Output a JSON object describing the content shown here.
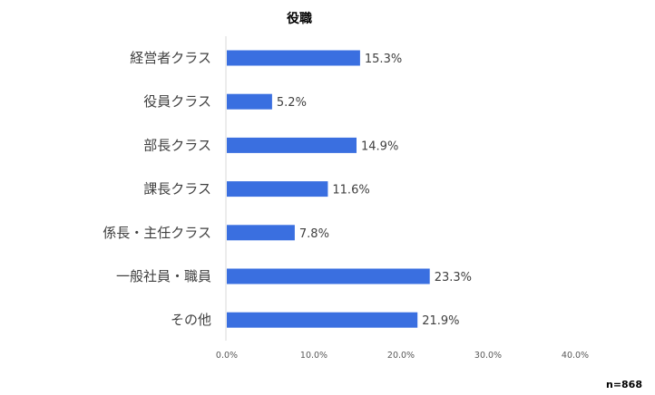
{
  "chart_data": {
    "type": "bar",
    "orientation": "horizontal",
    "title": "役職",
    "categories": [
      "経営者クラス",
      "役員クラス",
      "部長クラス",
      "課長クラス",
      "係長・主任クラス",
      "一般社員・職員",
      "その他"
    ],
    "values": [
      15.3,
      5.2,
      14.9,
      11.6,
      7.8,
      23.3,
      21.9
    ],
    "value_labels": [
      "15.3%",
      "5.2%",
      "14.9%",
      "11.6%",
      "7.8%",
      "23.3%",
      "21.9%"
    ],
    "xticks": [
      "0.0%",
      "10.0%",
      "20.0%",
      "30.0%",
      "40.0%"
    ],
    "xlim": [
      0,
      40
    ],
    "xlabel": "",
    "ylabel": "",
    "grid": false,
    "bar_color": "#3a6fe0",
    "axis_color": "#d9d9d9",
    "note": "n=868"
  }
}
